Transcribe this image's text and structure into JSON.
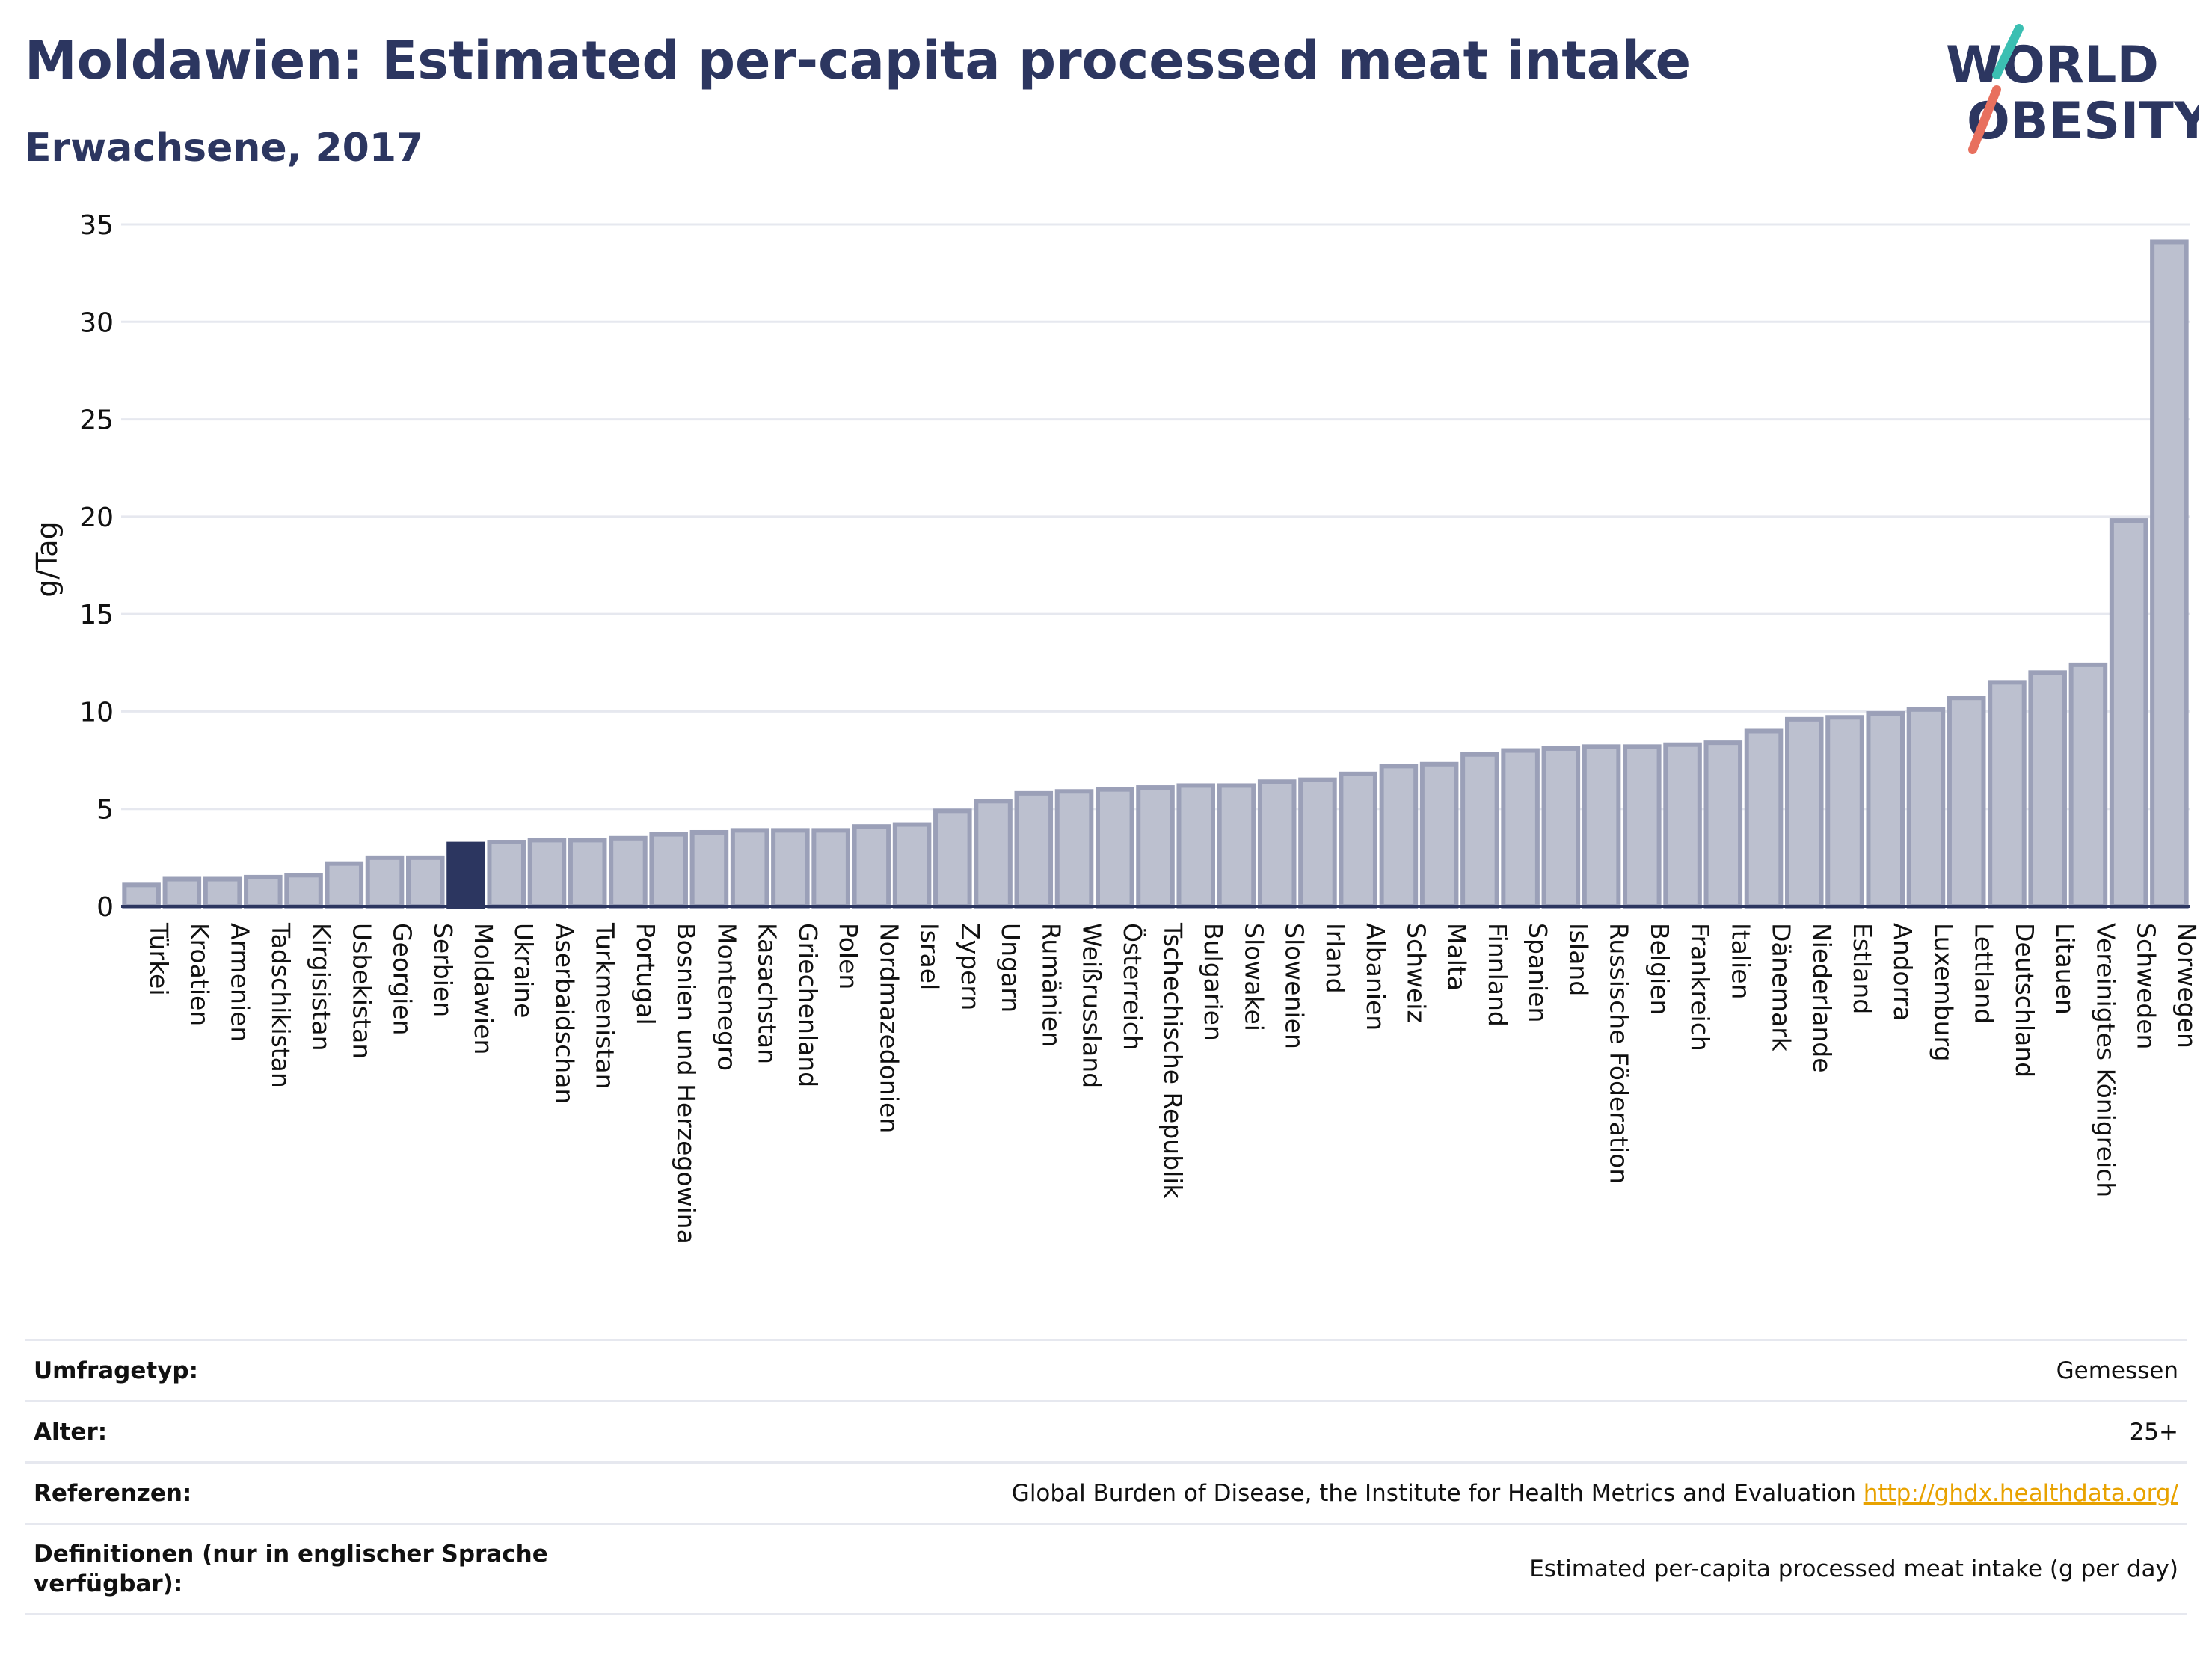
{
  "header": {
    "title": "Moldawien: Estimated per-capita processed meat intake",
    "subtitle": "Erwachsene, 2017",
    "logo_line1": "WORLD",
    "logo_line2": "OBESITY"
  },
  "colors": {
    "bar": "#bcc0cf",
    "bar_border": "#9ba0b8",
    "highlight": "#2c3660",
    "axis": "#2c3660",
    "grid": "#e6e8ef",
    "logo_teal": "#3bbfb2",
    "logo_coral": "#e8705e"
  },
  "chart_data": {
    "type": "bar",
    "ylabel": "g/Tag",
    "xlabel": "",
    "ylim": [
      0,
      35
    ],
    "yticks": [
      0,
      5,
      10,
      15,
      20,
      25,
      30,
      35
    ],
    "grid": true,
    "highlight": "Moldawien",
    "categories": [
      "Türkei",
      "Kroatien",
      "Armenien",
      "Tadschikistan",
      "Kirgisistan",
      "Usbekistan",
      "Georgien",
      "Serbien",
      "Moldawien",
      "Ukraine",
      "Aserbaidschan",
      "Turkmenistan",
      "Portugal",
      "Bosnien und Herzegowina",
      "Montenegro",
      "Kasachstan",
      "Griechenland",
      "Polen",
      "Nordmazedonien",
      "Israel",
      "Zypern",
      "Ungarn",
      "Rumänien",
      "Weißrussland",
      "Österreich",
      "Tschechische Republik",
      "Bulgarien",
      "Slowakei",
      "Slowenien",
      "Irland",
      "Albanien",
      "Schweiz",
      "Malta",
      "Finnland",
      "Spanien",
      "Island",
      "Russische Föderation",
      "Belgien",
      "Frankreich",
      "Italien",
      "Dänemark",
      "Niederlande",
      "Estland",
      "Andorra",
      "Luxemburg",
      "Lettland",
      "Deutschland",
      "Litauen",
      "Vereinigtes Königreich",
      "Schweden",
      "Norwegen"
    ],
    "values": [
      1.1,
      1.4,
      1.4,
      1.5,
      1.6,
      2.2,
      2.5,
      2.5,
      3.2,
      3.3,
      3.4,
      3.4,
      3.5,
      3.7,
      3.8,
      3.9,
      3.9,
      3.9,
      4.1,
      4.2,
      4.9,
      5.4,
      5.8,
      5.9,
      6.0,
      6.1,
      6.2,
      6.2,
      6.4,
      6.5,
      6.8,
      7.2,
      7.3,
      7.8,
      8.0,
      8.1,
      8.2,
      8.2,
      8.3,
      8.4,
      9.0,
      9.6,
      9.7,
      9.9,
      10.1,
      10.7,
      11.5,
      12.0,
      12.4,
      19.8,
      34.1
    ]
  },
  "meta": {
    "rows": [
      {
        "label": "Umfragetyp:",
        "value": "Gemessen"
      },
      {
        "label": "Alter:",
        "value": "25+"
      },
      {
        "label": "Referenzen:",
        "value": "Global Burden of Disease, the Institute for Health Metrics and Evaluation",
        "link": "http://ghdx.healthdata.org/"
      },
      {
        "label": "Definitionen (nur in englischer Sprache verfügbar):",
        "value": "Estimated per-capita processed meat intake (g per day)"
      }
    ]
  }
}
